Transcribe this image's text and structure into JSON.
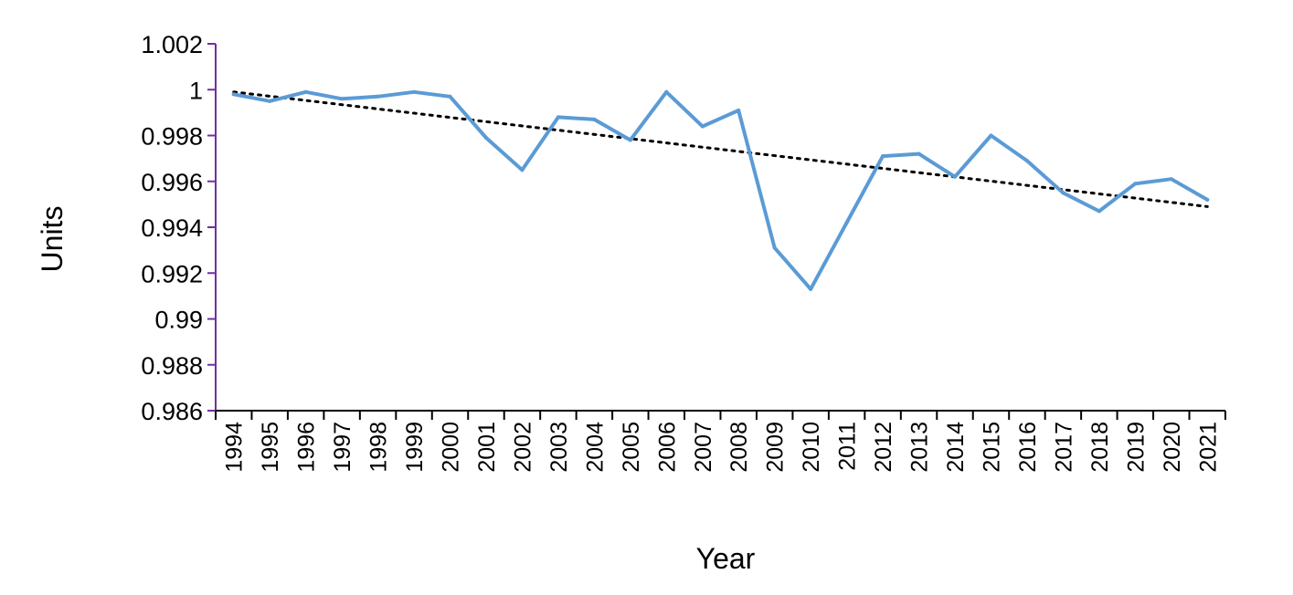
{
  "chart_data": {
    "type": "line",
    "title": "",
    "xlabel": "Year",
    "ylabel": "Units",
    "ylim": [
      0.986,
      1.002
    ],
    "yticks": [
      0.986,
      0.988,
      0.99,
      0.992,
      0.994,
      0.996,
      0.998,
      1,
      1.002
    ],
    "ytick_labels": [
      "0.986",
      "0.988",
      "0.99",
      "0.992",
      "0.994",
      "0.996",
      "0.998",
      "1",
      "1.002"
    ],
    "grid": false,
    "legend": "none",
    "categories": [
      "1994",
      "1995",
      "1996",
      "1997",
      "1998",
      "1999",
      "2000",
      "2001",
      "2002",
      "2003",
      "2004",
      "2005",
      "2006",
      "2007",
      "2008",
      "2009",
      "2010",
      "2011",
      "2012",
      "2013",
      "2014",
      "2015",
      "2016",
      "2017",
      "2018",
      "2019",
      "2020",
      "2021"
    ],
    "series": [
      {
        "values": [
          0.9998,
          0.9995,
          0.9999,
          0.9996,
          0.9997,
          0.9999,
          0.9997,
          0.9979,
          0.9965,
          0.9988,
          0.9987,
          0.9978,
          0.9999,
          0.9984,
          0.9991,
          0.9931,
          0.9913,
          0.9942,
          0.9971,
          0.9972,
          0.9962,
          0.998,
          0.9969,
          0.9955,
          0.9947,
          0.9959,
          0.9961,
          0.9952
        ],
        "color": "#5b9bd5"
      }
    ],
    "trendline": {
      "type": "linear",
      "style": "dotted",
      "start": 0.9999,
      "end": 0.9949,
      "color": "#000000"
    },
    "axis_color": "#000000",
    "y_axis_color": "#7030a0"
  }
}
